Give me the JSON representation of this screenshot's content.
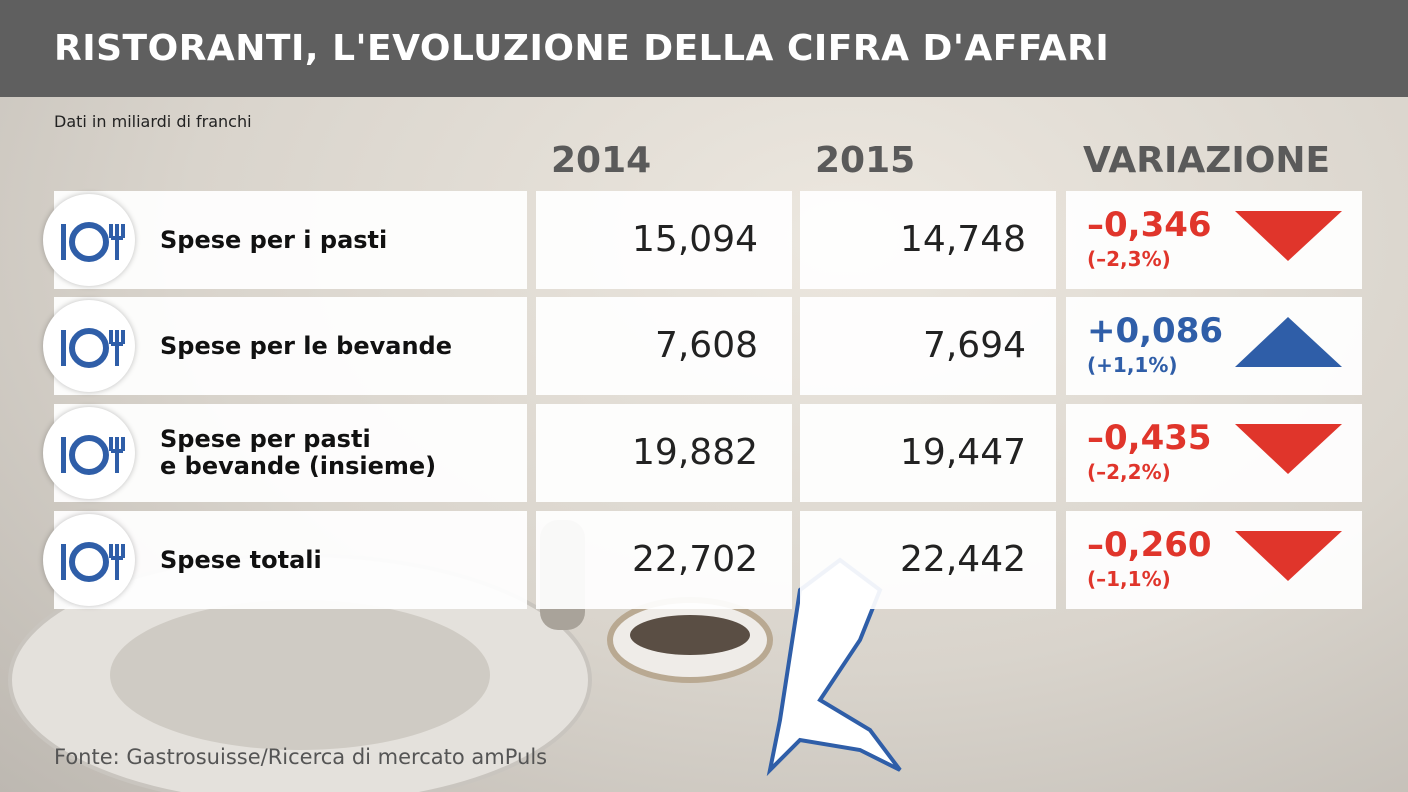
{
  "header": {
    "title": "RISTORANTI, L'EVOLUZIONE DELLA CIFRA D'AFFARI",
    "subtitle": "Dati in miliardi di franchi"
  },
  "table": {
    "columns": [
      "2014",
      "2015",
      "VARIAZIONE"
    ],
    "rows": [
      {
        "label": [
          "Spese per i pasti"
        ],
        "v2014": "15,094",
        "v2015": "14,748",
        "change": "–0,346",
        "change_pct": "(–2,3%)",
        "trend": "down",
        "color": "#e0352b"
      },
      {
        "label": [
          "Spese per le bevande"
        ],
        "v2014": "7,608",
        "v2015": "7,694",
        "change": "+0,086",
        "change_pct": "(+1,1%)",
        "trend": "up",
        "color": "#2f5ea8"
      },
      {
        "label": [
          "Spese per pasti",
          "e bevande (insieme)"
        ],
        "v2014": "19,882",
        "v2015": "19,447",
        "change": "–0,435",
        "change_pct": "(–2,2%)",
        "trend": "down",
        "color": "#e0352b"
      },
      {
        "label": [
          "Spese totali"
        ],
        "v2014": "22,702",
        "v2015": "22,442",
        "change": "–0,260",
        "change_pct": "(–1,1%)",
        "trend": "down",
        "color": "#e0352b"
      }
    ]
  },
  "footer": {
    "source": "Fonte: Gastrosuisse/Ricerca di mercato amPuls"
  }
}
